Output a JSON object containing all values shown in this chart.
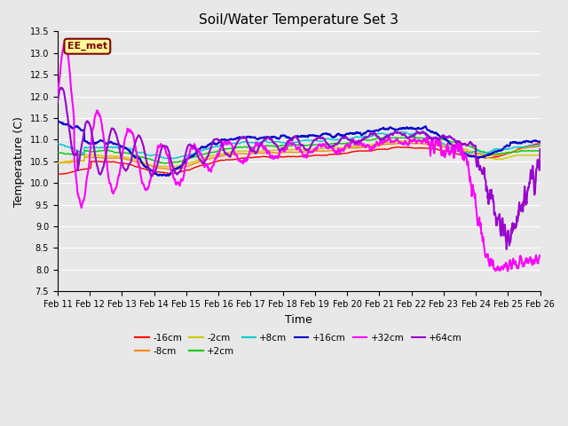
{
  "title": "Soil/Water Temperature Set 3",
  "xlabel": "Time",
  "ylabel": "Temperature (C)",
  "ylim": [
    7.5,
    13.5
  ],
  "yticks": [
    7.5,
    8.0,
    8.5,
    9.0,
    9.5,
    10.0,
    10.5,
    11.0,
    11.5,
    12.0,
    12.5,
    13.0,
    13.5
  ],
  "x_labels": [
    "Feb 11",
    "Feb 12",
    "Feb 13",
    "Feb 14",
    "Feb 15",
    "Feb 16",
    "Feb 17",
    "Feb 18",
    "Feb 19",
    "Feb 20",
    "Feb 21",
    "Feb 22",
    "Feb 23",
    "Feb 24",
    "Feb 25",
    "Feb 26"
  ],
  "bg_color": "#e8e8e8",
  "plot_bg_color": "#e8e8e8",
  "annotation_text": "EE_met",
  "annotation_bg": "#ffff99",
  "annotation_border": "#800000",
  "series": [
    {
      "label": "-16cm",
      "color": "#ff0000"
    },
    {
      "label": "-8cm",
      "color": "#ff8800"
    },
    {
      "label": "-2cm",
      "color": "#cccc00"
    },
    {
      "label": "+2cm",
      "color": "#00cc00"
    },
    {
      "label": "+8cm",
      "color": "#00cccc"
    },
    {
      "label": "+16cm",
      "color": "#0000cc"
    },
    {
      "label": "+32cm",
      "color": "#ff00ff"
    },
    {
      "label": "+64cm",
      "color": "#9900cc"
    }
  ]
}
